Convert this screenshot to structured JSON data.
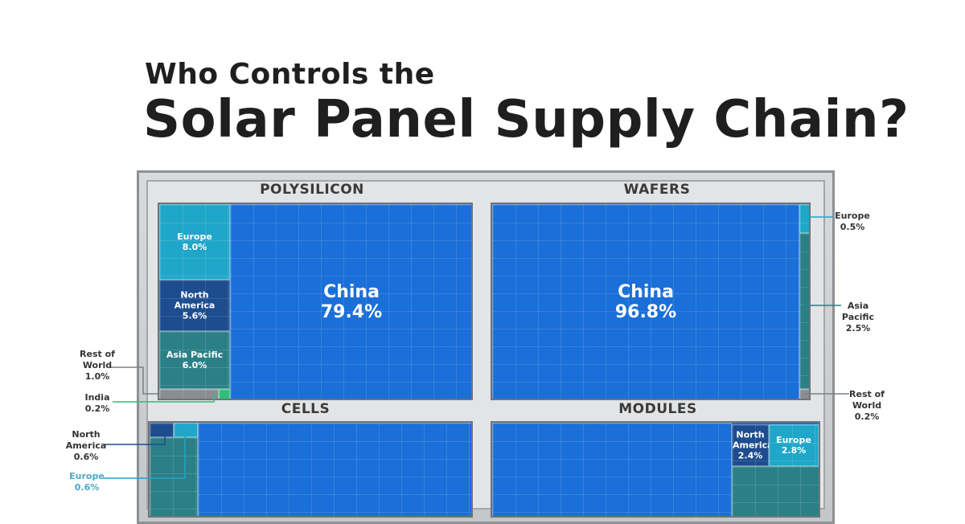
{
  "title": {
    "line1": "Who Controls the",
    "line2": "Solar Panel Supply Chain?"
  },
  "colors": {
    "china": "#1a6fd8",
    "europe": "#1fa6c8",
    "north_america": "#1d4c8f",
    "asia_pacific": "#2b7f86",
    "rest_of_world": "#8a8e92",
    "india": "#2bbf7a"
  },
  "chart_data": [
    {
      "type": "treemap",
      "title": "POLYSILICON",
      "items": [
        {
          "region": "China",
          "value": 79.4,
          "label": "79.4%"
        },
        {
          "region": "Europe",
          "value": 8.0,
          "label": "8.0%"
        },
        {
          "region": "North America",
          "value": 5.6,
          "label": "5.6%"
        },
        {
          "region": "Asia Pacific",
          "value": 6.0,
          "label": "6.0%"
        },
        {
          "region": "Rest of World",
          "value": 1.0,
          "label": "1.0%"
        },
        {
          "region": "India",
          "value": 0.2,
          "label": "0.2%"
        }
      ]
    },
    {
      "type": "treemap",
      "title": "WAFERS",
      "items": [
        {
          "region": "China",
          "value": 96.8,
          "label": "96.8%"
        },
        {
          "region": "Europe",
          "value": 0.5,
          "label": "0.5%"
        },
        {
          "region": "Asia Pacific",
          "value": 2.5,
          "label": "2.5%"
        },
        {
          "region": "Rest of World",
          "value": 0.2,
          "label": "0.2%"
        }
      ]
    },
    {
      "type": "treemap",
      "title": "CELLS",
      "items": [
        {
          "region": "North America",
          "value": 0.6,
          "label": "0.6%"
        },
        {
          "region": "Europe",
          "value": 0.6,
          "label": "0.6%"
        }
      ]
    },
    {
      "type": "treemap",
      "title": "MODULES",
      "items": [
        {
          "region": "North America",
          "value": 2.4,
          "label": "2.4%"
        },
        {
          "region": "Europe",
          "value": 2.8,
          "label": "2.8%"
        }
      ]
    }
  ],
  "labels": {
    "china": "China",
    "europe": "Europe",
    "north": "North",
    "america": "America",
    "asia_pacific": "Asia Pacific",
    "asia": "Asia",
    "pacific": "Pacific",
    "rest_of": "Rest of",
    "world": "World",
    "india": "India"
  }
}
